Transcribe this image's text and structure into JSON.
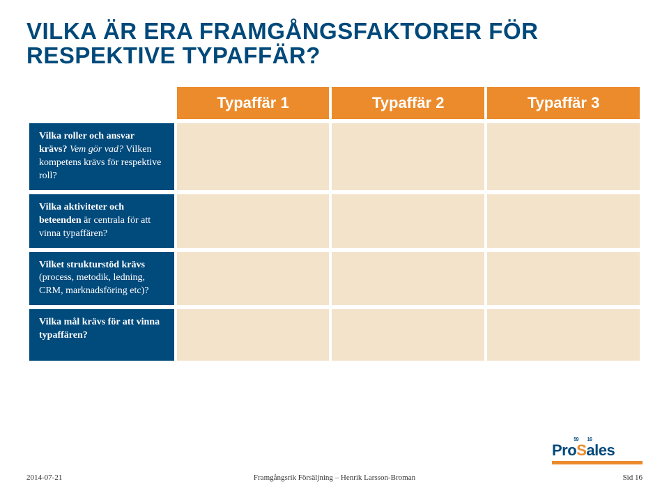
{
  "title": {
    "line1": "VILKA ÄR ERA FRAMGÅNGSFAKTORER FÖR",
    "line2": "RESPEKTIVE TYPAFFÄR?",
    "color": "#00497a"
  },
  "colors": {
    "header_bg": "#eb8b2c",
    "header_text": "#ffffff",
    "rowlabel_bg": "#004a7c",
    "rowlabel_text": "#ffffff",
    "cell_bg": "#f3e3cb",
    "logo_navy": "#00497a",
    "logo_orange": "#eb8b2c",
    "logo_bar": "#eb8b2c"
  },
  "table": {
    "headers": [
      "Typaffär 1",
      "Typaffär 2",
      "Typaffär 3"
    ],
    "rows": [
      {
        "label_html": "<span class='bold'>Vilka roller och ansvar krävs?</span> <span class='ital'>Vem gör vad?</span> Vilken kompetens krävs för respektive roll?"
      },
      {
        "label_html": "<span class='bold'>Vilka aktiviteter och beteenden</span> är centrala för att vinna typaffären?"
      },
      {
        "label_html": "<span class='bold'>Vilket strukturstöd krävs</span> (process, metodik, ledning, CRM, marknadsföring etc)?"
      },
      {
        "label_html": "<span class='bold'>Vilka mål krävs för att vinna typaffären?</span>"
      }
    ]
  },
  "logo": {
    "pro": "Pro",
    "s_letter": "S",
    "ales": "ales",
    "sup_left": "59",
    "sup_right": "16"
  },
  "footer": {
    "left": "2014-07-21",
    "center": "Framgångsrik Försäljning – Henrik Larsson-Broman",
    "right": "Sid 16"
  }
}
